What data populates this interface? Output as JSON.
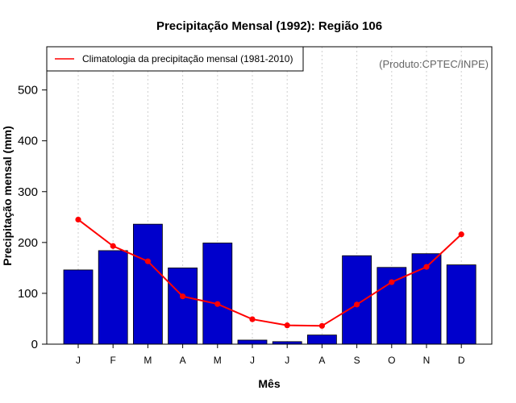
{
  "chart_data": {
    "type": "bar",
    "title": "Precipitação Mensal (1992): Região 106",
    "xlabel": "Mês",
    "ylabel": "Precipitação mensal (mm)",
    "ylim": [
      0,
      585
    ],
    "yticks": [
      0,
      100,
      200,
      300,
      400,
      500
    ],
    "categories": [
      "J",
      "F",
      "M",
      "A",
      "M",
      "J",
      "J",
      "A",
      "S",
      "O",
      "N",
      "D"
    ],
    "grid": "vertical dotted",
    "legend_position": "top-left",
    "series": [
      {
        "name": "Precipitação mensal (1992)",
        "type": "bar",
        "color": "#0000CC",
        "values": [
          146,
          184,
          236,
          150,
          199,
          8,
          5,
          18,
          174,
          151,
          178,
          156
        ]
      },
      {
        "name": "Climatologia da precipitação mensal (1981-2010)",
        "type": "line",
        "color": "#FF0000",
        "values": [
          245,
          193,
          163,
          94,
          79,
          49,
          37,
          36,
          78,
          122,
          152,
          216
        ]
      }
    ],
    "legend": [
      "Climatologia da precipitação mensal (1981-2010)"
    ],
    "annotation": "(Produto:CPTEC/INPE)"
  }
}
